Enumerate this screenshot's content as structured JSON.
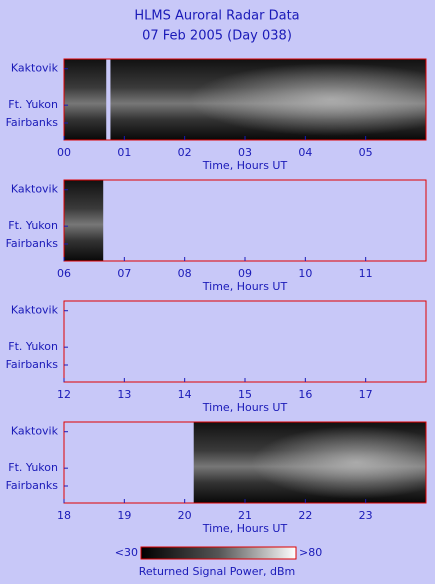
{
  "header": {
    "title": "HLMS Auroral Radar Data",
    "subtitle": "07 Feb 2005 (Day 038)"
  },
  "colorbar": {
    "label": "Returned Signal Power, dBm",
    "ticks": [
      {
        "value": 30,
        "label": "<30"
      },
      {
        "value": 80,
        "label": ">80"
      }
    ]
  },
  "chart_data": [
    {
      "type": "heatmap",
      "xlabel": "Time, Hours UT",
      "xlim": [
        0,
        6
      ],
      "xticks": [
        {
          "value": 0,
          "label": "00"
        },
        {
          "value": 1,
          "label": "01"
        },
        {
          "value": 2,
          "label": "02"
        },
        {
          "value": 3,
          "label": "03"
        },
        {
          "value": 4,
          "label": "04"
        },
        {
          "value": 5,
          "label": "05"
        }
      ],
      "ycategories": [
        "Kaktovik",
        "Ft. Yukon",
        "Fairbanks"
      ],
      "segments": [
        [
          0,
          0.7
        ],
        [
          0.77,
          6
        ]
      ]
    },
    {
      "type": "heatmap",
      "xlabel": "Time, Hours UT",
      "xlim": [
        6,
        12
      ],
      "xticks": [
        {
          "value": 6,
          "label": "06"
        },
        {
          "value": 7,
          "label": "07"
        },
        {
          "value": 8,
          "label": "08"
        },
        {
          "value": 9,
          "label": "09"
        },
        10,
        11
      ],
      "ycategories": [
        "Kaktovik",
        "Ft. Yukon",
        "Fairbanks"
      ],
      "segments": [
        [
          6,
          6.65
        ]
      ]
    },
    {
      "type": "heatmap",
      "xlabel": "Time, Hours UT",
      "xlim": [
        12,
        18
      ],
      "xticks": [
        12,
        13,
        14,
        15,
        16,
        17
      ],
      "ycategories": [
        "Kaktovik",
        "Ft. Yukon",
        "Fairbanks"
      ],
      "segments": []
    },
    {
      "type": "heatmap",
      "xlabel": "Time, Hours UT",
      "xlim": [
        18,
        24
      ],
      "xticks": [
        18,
        19,
        20,
        21,
        22,
        23
      ],
      "ycategories": [
        "Kaktovik",
        "Ft. Yukon",
        "Fairbanks"
      ],
      "segments": [
        [
          20.15,
          24
        ]
      ]
    }
  ]
}
